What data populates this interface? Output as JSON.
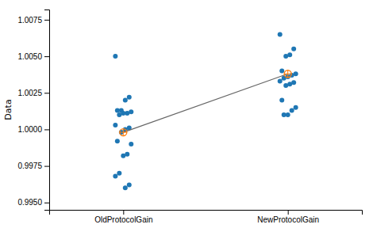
{
  "chart_data": {
    "type": "scatter",
    "categories": [
      "OldProtocolGain",
      "NewProtocolGain"
    ],
    "ylabel": "Data",
    "series": [
      {
        "type": "scatter",
        "values": [
          [
            1.005,
            1.0022,
            1.002,
            1.0013,
            1.0013,
            1.0012,
            1.0011,
            1.0011,
            1.001,
            1.0003,
            1.0001,
            1.0,
            0.9998,
            0.9992,
            0.999,
            0.9983,
            0.9982,
            0.997,
            0.9968,
            0.9962,
            0.996
          ],
          [
            1.0065,
            1.0055,
            1.0051,
            1.005,
            1.004,
            1.0038,
            1.0037,
            1.0036,
            1.0035,
            1.0033,
            1.0032,
            1.0031,
            1.003,
            1.002,
            1.0015,
            1.0013,
            1.001,
            1.001
          ]
        ]
      },
      {
        "type": "line",
        "marker": "circle",
        "values": [
          0.9998,
          1.0038
        ]
      }
    ],
    "ylim": [
      0.9945,
      1.0082
    ],
    "yticks": [
      {
        "value": 0.995,
        "label": "0.9950"
      },
      {
        "value": 0.9975,
        "label": "0.9975"
      },
      {
        "value": 1.0,
        "label": "1.0000"
      },
      {
        "value": 1.0025,
        "label": "1.0025"
      },
      {
        "value": 1.005,
        "label": "1.0050"
      },
      {
        "value": 1.0075,
        "label": "1.0075"
      }
    ],
    "grid": false
  }
}
